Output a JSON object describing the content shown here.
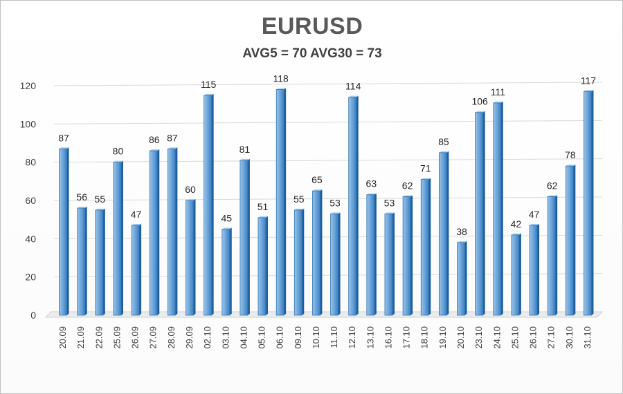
{
  "chart_data": {
    "type": "bar",
    "title": "EURUSD",
    "subtitle": "AVG5 = 70 AVG30 = 73",
    "categories": [
      "20.09",
      "21.09",
      "22.09",
      "25.09",
      "26.09",
      "27.09",
      "28.09",
      "29.09",
      "02.10",
      "03.10",
      "04.10",
      "05.10",
      "06.10",
      "09.10",
      "10.10",
      "11.10",
      "12.10",
      "13.10",
      "16.10",
      "17.10",
      "18.10",
      "19.10",
      "20.10",
      "23.10",
      "24.10",
      "25.10",
      "26.10",
      "27.10",
      "30.10",
      "31.10"
    ],
    "values": [
      87,
      56,
      55,
      80,
      47,
      86,
      87,
      60,
      115,
      45,
      81,
      51,
      118,
      55,
      65,
      53,
      114,
      63,
      53,
      62,
      71,
      85,
      38,
      106,
      111,
      42,
      47,
      62,
      78,
      117
    ],
    "ylim": [
      0,
      120
    ],
    "yticks": [
      0,
      20,
      40,
      60,
      80,
      100,
      120
    ],
    "grid": true,
    "legend": "none",
    "bar_color": "#5b9bd5",
    "bar_dark": "#2e75b6"
  }
}
